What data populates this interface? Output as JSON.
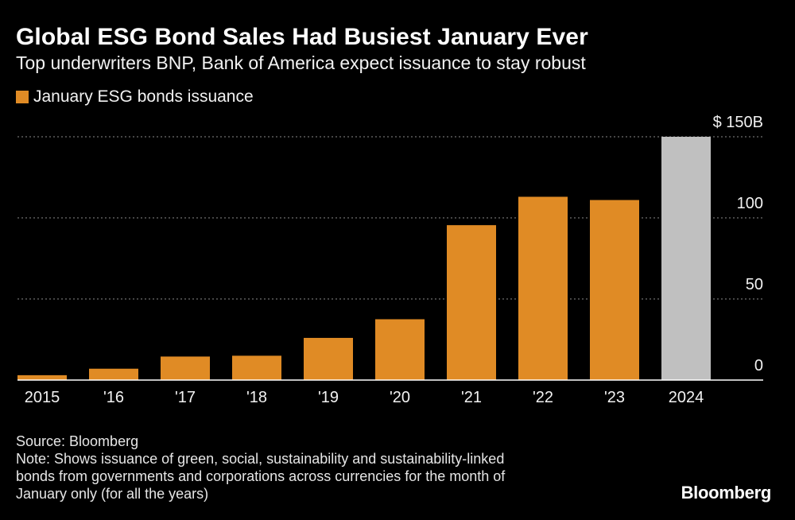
{
  "header": {
    "title": "Global ESG Bond Sales Had Busiest January Ever",
    "subtitle": "Top underwriters BNP, Bank of America expect issuance to stay robust"
  },
  "legend": {
    "label": "January ESG bonds issuance",
    "color": "#e08b25"
  },
  "footer": {
    "source": "Source: Bloomberg",
    "note_lines": [
      "Note: Shows issuance of green, social, sustainability and sustainability-linked",
      "bonds from governments and corporations across currencies for the month of",
      "January only (for all the years)"
    ]
  },
  "brand": "Bloomberg",
  "colors": {
    "bar": "#e08b25",
    "highlight_bar": "#c0c0c0",
    "background": "#000000",
    "grid": "#8a8a8a",
    "text": "#ffffff"
  },
  "chart_data": {
    "type": "bar",
    "title": "Global ESG Bond Sales Had Busiest January Ever",
    "categories": [
      "2015",
      "'16",
      "'17",
      "'18",
      "'19",
      "'20",
      "'21",
      "'22",
      "'23",
      "2024"
    ],
    "values": [
      3,
      7,
      14.5,
      15,
      26,
      37.5,
      95.5,
      113,
      111,
      150
    ],
    "highlight_index": 9,
    "ylim": [
      0,
      150
    ],
    "yticks": [
      0,
      50,
      100,
      150
    ],
    "ytick_labels": [
      "0",
      "50",
      "100",
      "$ 150B"
    ],
    "y_axis_position": "right",
    "grid": true,
    "series_name": "January ESG bonds issuance",
    "xlabel": "",
    "ylabel": ""
  }
}
